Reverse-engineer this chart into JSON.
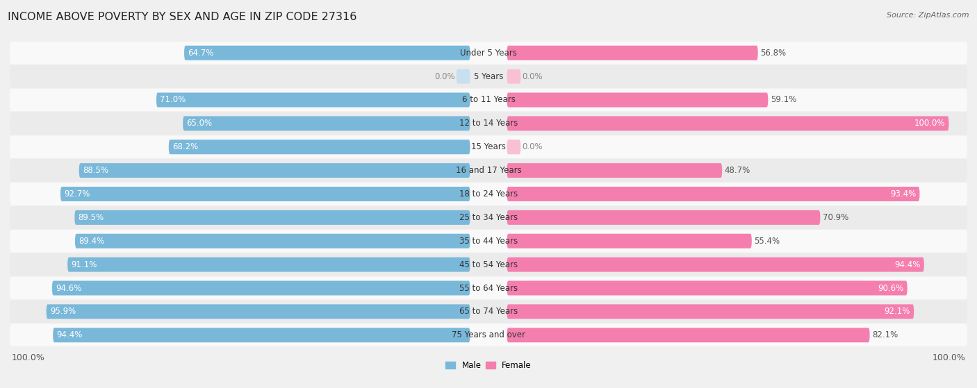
{
  "title": "INCOME ABOVE POVERTY BY SEX AND AGE IN ZIP CODE 27316",
  "source": "Source: ZipAtlas.com",
  "categories": [
    "Under 5 Years",
    "5 Years",
    "6 to 11 Years",
    "12 to 14 Years",
    "15 Years",
    "16 and 17 Years",
    "18 to 24 Years",
    "25 to 34 Years",
    "35 to 44 Years",
    "45 to 54 Years",
    "55 to 64 Years",
    "65 to 74 Years",
    "75 Years and over"
  ],
  "male": [
    64.7,
    0.0,
    71.0,
    65.0,
    68.2,
    88.5,
    92.7,
    89.5,
    89.4,
    91.1,
    94.6,
    95.9,
    94.4
  ],
  "female": [
    56.8,
    0.0,
    59.1,
    100.0,
    0.0,
    48.7,
    93.4,
    70.9,
    55.4,
    94.4,
    90.6,
    92.1,
    82.1
  ],
  "male_color": "#7ab8d9",
  "female_color": "#f47fae",
  "male_color_light": "#c8dff0",
  "female_color_light": "#f9c0d4",
  "background_color": "#f0f0f0",
  "row_color_even": "#f9f9f9",
  "row_color_odd": "#ebebeb",
  "title_fontsize": 11.5,
  "label_fontsize": 8.5,
  "tick_fontsize": 9,
  "max_val": 100.0,
  "legend_male": "Male",
  "legend_female": "Female"
}
